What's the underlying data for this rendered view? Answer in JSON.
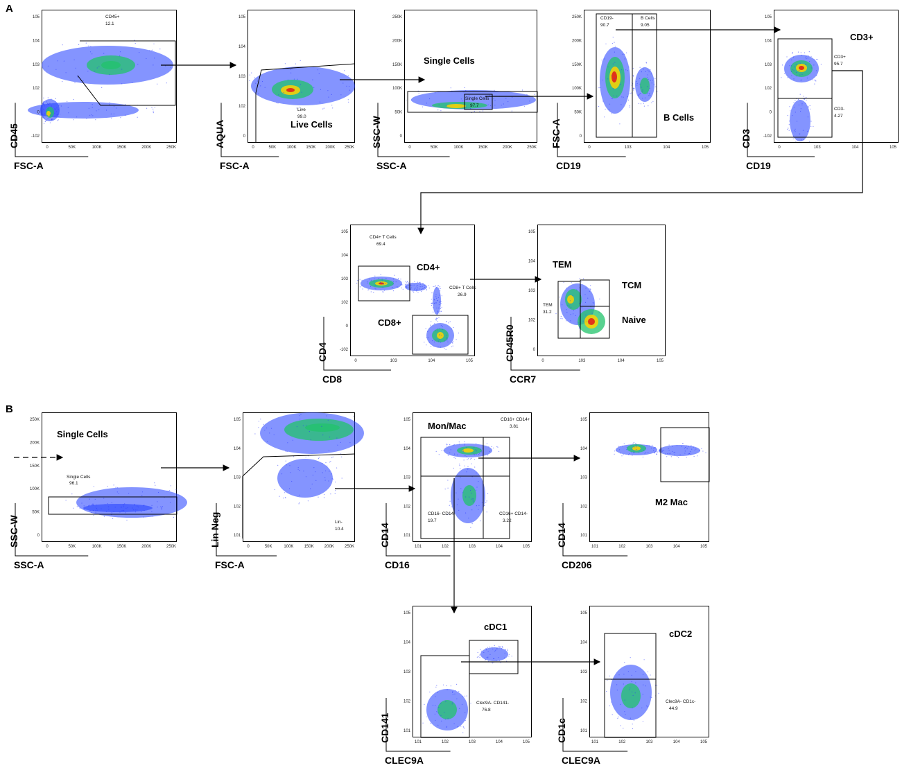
{
  "panel_a": {
    "letter": "A",
    "plots": [
      {
        "x_label": "FSC-A",
        "y_label": "CD45",
        "x_ticks": [
          "0",
          "50K",
          "100K",
          "150K",
          "200K",
          "250K"
        ],
        "y_ticks": [
          "10^5",
          "10^4",
          "10^3",
          "10^2",
          "0",
          "-10^2"
        ],
        "gates": [
          {
            "name": "CD45+",
            "value": "12.1"
          }
        ],
        "titles": []
      },
      {
        "x_label": "FSC-A",
        "y_label": "AQUA",
        "x_ticks": [
          "0",
          "50K",
          "100K",
          "150K",
          "200K",
          "250K"
        ],
        "y_ticks": [
          "10^5",
          "10^4",
          "10^3",
          "10^2",
          "0"
        ],
        "gates": [
          {
            "name": "Live",
            "value": "99.0"
          }
        ],
        "titles": [
          "Live Cells"
        ]
      },
      {
        "x_label": "SSC-A",
        "y_label": "SSC-W",
        "x_ticks": [
          "0",
          "50K",
          "100K",
          "150K",
          "200K",
          "250K"
        ],
        "y_ticks": [
          "250K",
          "200K",
          "150K",
          "100K",
          "50K",
          "0"
        ],
        "gates": [
          {
            "name": "Single Cells",
            "value": "97.7"
          }
        ],
        "titles": [
          "Single Cells"
        ]
      },
      {
        "x_label": "CD19",
        "y_label": "FSC-A",
        "x_ticks": [
          "0",
          "10^3",
          "10^4",
          "10^5"
        ],
        "y_ticks": [
          "250K",
          "200K",
          "150K",
          "100K",
          "50K",
          "0"
        ],
        "gates": [
          {
            "name": "CD19-",
            "value": "90.7"
          },
          {
            "name": "B Cells",
            "value": "9.05"
          }
        ],
        "titles": [
          "B Cells"
        ]
      },
      {
        "x_label": "CD19",
        "y_label": "CD3",
        "x_ticks": [
          "0",
          "10^3",
          "10^4",
          "10^5"
        ],
        "y_ticks": [
          "10^5",
          "10^4",
          "10^3",
          "10^2",
          "0",
          "-10^2"
        ],
        "gates": [
          {
            "name": "CD3+",
            "value": "95.7"
          },
          {
            "name": "CD3-",
            "value": "4.27"
          }
        ],
        "titles": [
          "CD3+"
        ]
      },
      {
        "x_label": "CD8",
        "y_label": "CD4",
        "x_ticks": [
          "0",
          "10^3",
          "10^4",
          "10^5"
        ],
        "y_ticks": [
          "10^5",
          "10^4",
          "10^3",
          "10^2",
          "0",
          "-10^2"
        ],
        "gates": [
          {
            "name": "CD4+ T Cells",
            "value": "69.4"
          },
          {
            "name": "CD8+ T Cells",
            "value": "26.9"
          }
        ],
        "titles": [
          "CD4+",
          "CD8+"
        ]
      },
      {
        "x_label": "CCR7",
        "y_label": "CD45R0",
        "x_ticks": [
          "0",
          "10^3",
          "10^4",
          "10^5"
        ],
        "y_ticks": [
          "10^5",
          "10^4",
          "10^3",
          "10^2",
          "0"
        ],
        "gates": [
          {
            "name": "TEM",
            "value": "31.2"
          }
        ],
        "titles": [
          "TEM",
          "TCM",
          "Naive"
        ]
      }
    ]
  },
  "panel_b": {
    "letter": "B",
    "plots": [
      {
        "x_label": "SSC-A",
        "y_label": "SSC-W",
        "x_ticks": [
          "0",
          "50K",
          "100K",
          "150K",
          "200K",
          "250K"
        ],
        "y_ticks": [
          "250K",
          "200K",
          "150K",
          "100K",
          "50K",
          "0"
        ],
        "gates": [
          {
            "name": "Single Cells",
            "value": "96.1"
          }
        ],
        "titles": [
          "Single Cells"
        ]
      },
      {
        "x_label": "FSC-A",
        "y_label": "Lin Neg",
        "x_ticks": [
          "0",
          "50K",
          "100K",
          "150K",
          "200K",
          "250K"
        ],
        "y_ticks": [
          "10^5",
          "10^4",
          "10^3",
          "10^2",
          "10^1"
        ],
        "gates": [
          {
            "name": "Lin-",
            "value": "10.4"
          }
        ],
        "titles": []
      },
      {
        "x_label": "CD16",
        "y_label": "CD14",
        "x_ticks": [
          "10^1",
          "10^2",
          "10^3",
          "10^4",
          "10^5"
        ],
        "y_ticks": [
          "10^5",
          "10^4",
          "10^3",
          "10^2",
          "10^1"
        ],
        "gates": [
          {
            "name": "CD16+ CD14+",
            "value": "3.81"
          },
          {
            "name": "CD16- CD14-",
            "value": "19.7"
          },
          {
            "name": "CD16+ CD14-",
            "value": "3.22"
          }
        ],
        "titles": [
          "Mon/Mac"
        ]
      },
      {
        "x_label": "CD206",
        "y_label": "CD14",
        "x_ticks": [
          "10^1",
          "10^2",
          "10^3",
          "10^4",
          "10^5"
        ],
        "y_ticks": [
          "10^5",
          "10^4",
          "10^3",
          "10^2",
          "10^1"
        ],
        "gates": [],
        "titles": [
          "M2 Mac"
        ]
      },
      {
        "x_label": "CLEC9A",
        "y_label": "CD141",
        "x_ticks": [
          "10^1",
          "10^2",
          "10^3",
          "10^4",
          "10^5"
        ],
        "y_ticks": [
          "10^5",
          "10^4",
          "10^3",
          "10^2",
          "10^1"
        ],
        "gates": [
          {
            "name": "Clec9A- CD141-",
            "value": "76.8"
          }
        ],
        "titles": [
          "cDC1"
        ]
      },
      {
        "x_label": "CLEC9A",
        "y_label": "CD1c",
        "x_ticks": [
          "10^1",
          "10^2",
          "10^3",
          "10^4",
          "10^5"
        ],
        "y_ticks": [
          "10^5",
          "10^4",
          "10^3",
          "10^2",
          "10^1"
        ],
        "gates": [
          {
            "name": "Clec9A- CD1c-",
            "value": "44.9"
          }
        ],
        "titles": [
          "cDC2"
        ]
      }
    ]
  },
  "colors": {
    "low_density": "#1f3cff",
    "mid_density": "#22c36b",
    "high_density": "#ffd200",
    "peak_density": "#e0201b",
    "gate": "#000000"
  }
}
